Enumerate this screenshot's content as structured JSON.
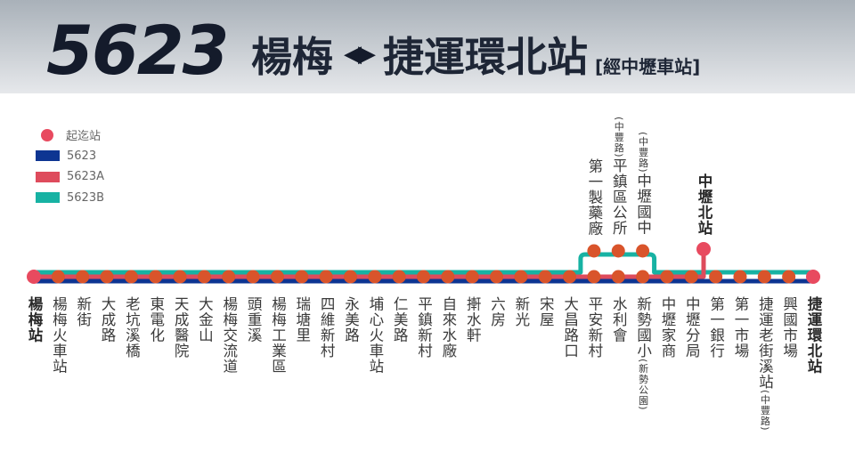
{
  "header": {
    "route_number": "5623",
    "origin": "楊梅",
    "arrows": "◀▶",
    "destination": "捷運環北站",
    "via": "[經中壢車站]"
  },
  "legend": [
    {
      "label": "起迄站",
      "type": "dot",
      "color": "#e84a5f"
    },
    {
      "label": "5623",
      "type": "line",
      "color": "#0d3592"
    },
    {
      "label": "5623A",
      "type": "line",
      "color": "#de4b5c"
    },
    {
      "label": "5623B",
      "type": "line",
      "color": "#17b2a3"
    }
  ],
  "colors": {
    "stop": "#d9542b",
    "terminal": "#e84a5f",
    "line_5623": "#0d3592",
    "line_5623A": "#de4b5c",
    "line_5623B": "#17b2a3"
  },
  "main_stations": [
    {
      "name": "楊梅站",
      "terminal": true
    },
    {
      "name": "楊梅火車站"
    },
    {
      "name": "新街"
    },
    {
      "name": "大成路"
    },
    {
      "name": "老坑溪橋"
    },
    {
      "name": "東電化"
    },
    {
      "name": "天成醫院"
    },
    {
      "name": "大金山"
    },
    {
      "name": "楊梅交流道"
    },
    {
      "name": "頭重溪"
    },
    {
      "name": "楊梅工業區"
    },
    {
      "name": "瑞塘里"
    },
    {
      "name": "四維新村"
    },
    {
      "name": "永美路"
    },
    {
      "name": "埔心火車站"
    },
    {
      "name": "仁美路"
    },
    {
      "name": "平鎮新村"
    },
    {
      "name": "自來水廠"
    },
    {
      "name": "搟水軒"
    },
    {
      "name": "六房"
    },
    {
      "name": "新光"
    },
    {
      "name": "宋屋"
    },
    {
      "name": "大昌路口"
    },
    {
      "name": "平安新村"
    },
    {
      "name": "水利會"
    },
    {
      "name": "新勢國小",
      "suffix": "(新勢公園)"
    },
    {
      "name": "中壢家商"
    },
    {
      "name": "中壢分局"
    },
    {
      "name": "第一銀行"
    },
    {
      "name": "第一市場"
    },
    {
      "name": "捷運老街溪站",
      "suffix": "(中豐路)"
    },
    {
      "name": "興國市場"
    },
    {
      "name": "捷運環北站",
      "terminal": true
    }
  ],
  "branch_stations": [
    {
      "name": "第一製藥廠"
    },
    {
      "prefix": "(中豐路)",
      "name": "平鎮區公所"
    },
    {
      "prefix": "(中豐路)",
      "name": "中壢國中"
    }
  ],
  "spur_station": {
    "name": "中壢北站",
    "terminal": true
  }
}
